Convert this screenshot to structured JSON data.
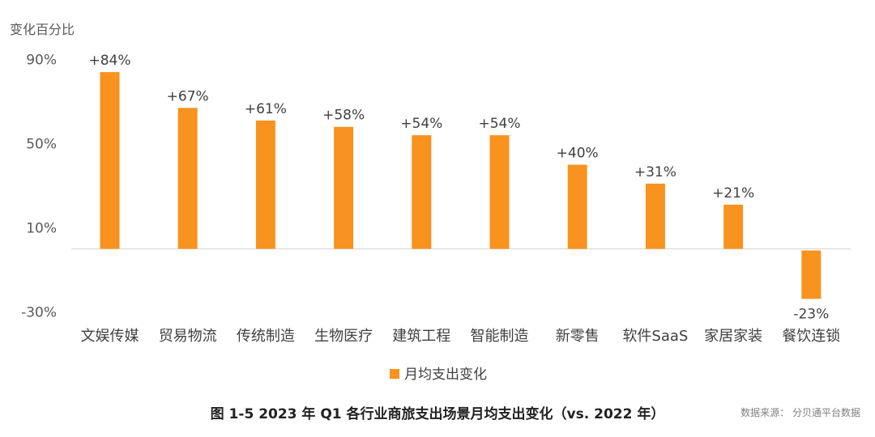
{
  "chart_data": {
    "type": "bar",
    "ylabel": "变化百分比",
    "yticks": [
      "90%",
      "50%",
      "10%",
      "-30%"
    ],
    "ytick_values": [
      90,
      50,
      10,
      -30
    ],
    "categories": [
      "文娱传媒",
      "贸易物流",
      "传统制造",
      "生物医疗",
      "建筑工程",
      "智能制造",
      "新零售",
      "软件SaaS",
      "家居家装",
      "餐饮连锁"
    ],
    "series": [
      {
        "name": "月均支出变化",
        "values": [
          84,
          67,
          61,
          58,
          54,
          54,
          40,
          31,
          21,
          -23
        ],
        "labels": [
          "+84%",
          "+67%",
          "+61%",
          "+58%",
          "+54%",
          "+54%",
          "+40%",
          "+31%",
          "+21%",
          "-23%"
        ]
      }
    ],
    "bar_color": "#F7931E",
    "grid": false,
    "legend_position": "bottom-center",
    "ylim": [
      -30,
      90
    ]
  },
  "caption": "图 1-5 2023 年 Q1 各行业商旅支出场景月均支出变化（vs. 2022 年）",
  "source": "数据来源： 分贝通平台数据"
}
